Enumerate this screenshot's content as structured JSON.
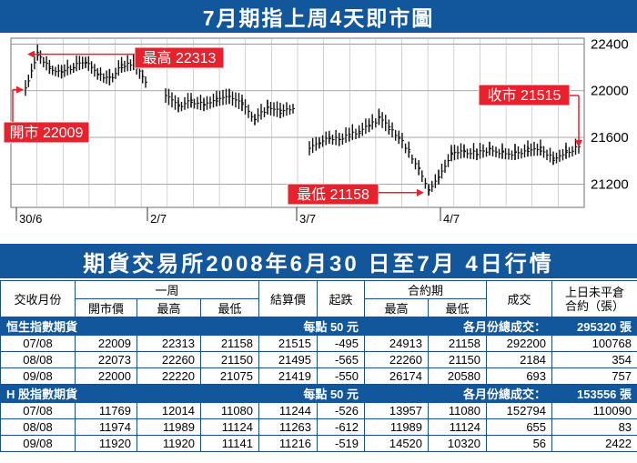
{
  "title": "7月期指上周4天即市圖",
  "chart_data": {
    "type": "line",
    "x_labels": [
      "30/6",
      "2/7",
      "3/7",
      "4/7"
    ],
    "ylim": [
      21000,
      22450
    ],
    "y_ticks": [
      22400,
      22000,
      21600,
      21200
    ],
    "grid": true,
    "series": [
      {
        "values": [
          22009,
          22313,
          22200,
          22160,
          22210,
          22250,
          22150,
          22100,
          22210,
          22230,
          22080,
          21950,
          21870,
          21910,
          21880,
          21920,
          21940,
          21880,
          21760,
          21850,
          21820,
          21860,
          21500,
          21560,
          21600,
          21580,
          21620,
          21650,
          21700,
          21760,
          21680,
          21600,
          21480,
          21330,
          21158,
          21250,
          21450,
          21480,
          21460,
          21500,
          21470,
          21460,
          21490,
          21500,
          21420,
          21470,
          21515
        ]
      }
    ],
    "annotations": [
      {
        "label": "開市 22009",
        "value": 22009
      },
      {
        "label": "最高 22313",
        "value": 22313
      },
      {
        "label": "最低 21158",
        "value": 21158
      },
      {
        "label": "收市 21515",
        "value": 21515
      }
    ]
  },
  "table_title": "期貨交易所2008年6月30 日至7月 4日行情",
  "headers": {
    "month": "交收月份",
    "week": "一周",
    "open": "開市價",
    "high": "最高",
    "low": "最低",
    "settle": "結算價",
    "change": "起跌",
    "contract": "合約期",
    "c_high": "最高",
    "c_low": "最低",
    "volume": "成交",
    "oi": "上日未平倉\n合約（張）"
  },
  "groups": [
    {
      "name": "恒生指數期貨",
      "unit": "每點 50 元",
      "total_label": "各月份總成交：",
      "total": "295320 張",
      "rows": [
        [
          "07/08",
          "22009",
          "22313",
          "21158",
          "21515",
          "-495",
          "24913",
          "21158",
          "292200",
          "100768"
        ],
        [
          "08/08",
          "22073",
          "22260",
          "21150",
          "21495",
          "-565",
          "22260",
          "21150",
          "2184",
          "354"
        ],
        [
          "09/08",
          "22000",
          "22220",
          "21075",
          "21419",
          "-550",
          "26174",
          "20580",
          "693",
          "757"
        ]
      ]
    },
    {
      "name": "H 股指數期貨",
      "unit": "每點 50 元",
      "total_label": "各月份總成交：",
      "total": "153556 張",
      "rows": [
        [
          "07/08",
          "11769",
          "12014",
          "11080",
          "11244",
          "-526",
          "13957",
          "11080",
          "152794",
          "110090"
        ],
        [
          "08/08",
          "11974",
          "11989",
          "11124",
          "11263",
          "-612",
          "11989",
          "11124",
          "655",
          "83"
        ],
        [
          "09/08",
          "11920",
          "11920",
          "11141",
          "11216",
          "-519",
          "14520",
          "10320",
          "56",
          "2422"
        ]
      ]
    }
  ],
  "colors": {
    "blue": "#12569c",
    "red": "#e8212d",
    "grid": "#8a8a8a"
  }
}
